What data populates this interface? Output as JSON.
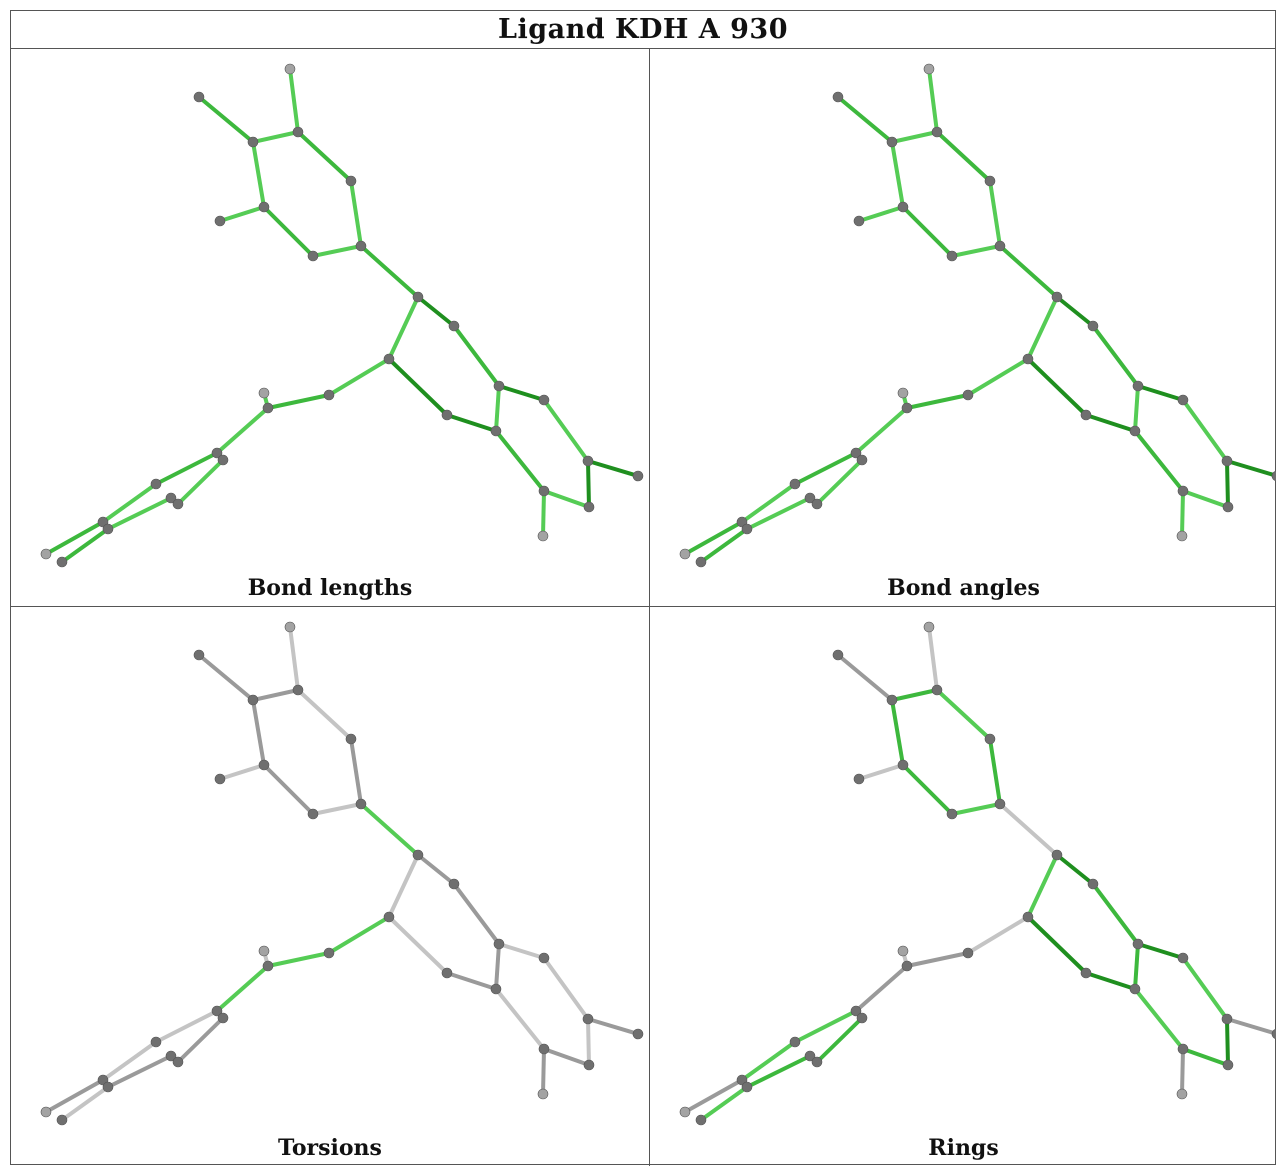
{
  "title": "Ligand KDH A 930",
  "panels": [
    {
      "caption": "Bond lengths"
    },
    {
      "caption": "Bond angles"
    },
    {
      "caption": "Torsions"
    },
    {
      "caption": "Rings"
    }
  ],
  "colors": {
    "green_light": "#55cc55",
    "green_mid": "#3db83d",
    "green_dark": "#1f8f1f",
    "grey_bond": "#9a9a9a",
    "grey_light_bond": "#c4c4c4",
    "atom_dark": "#6f6f6f",
    "atom_light": "#a3a3a3"
  }
}
